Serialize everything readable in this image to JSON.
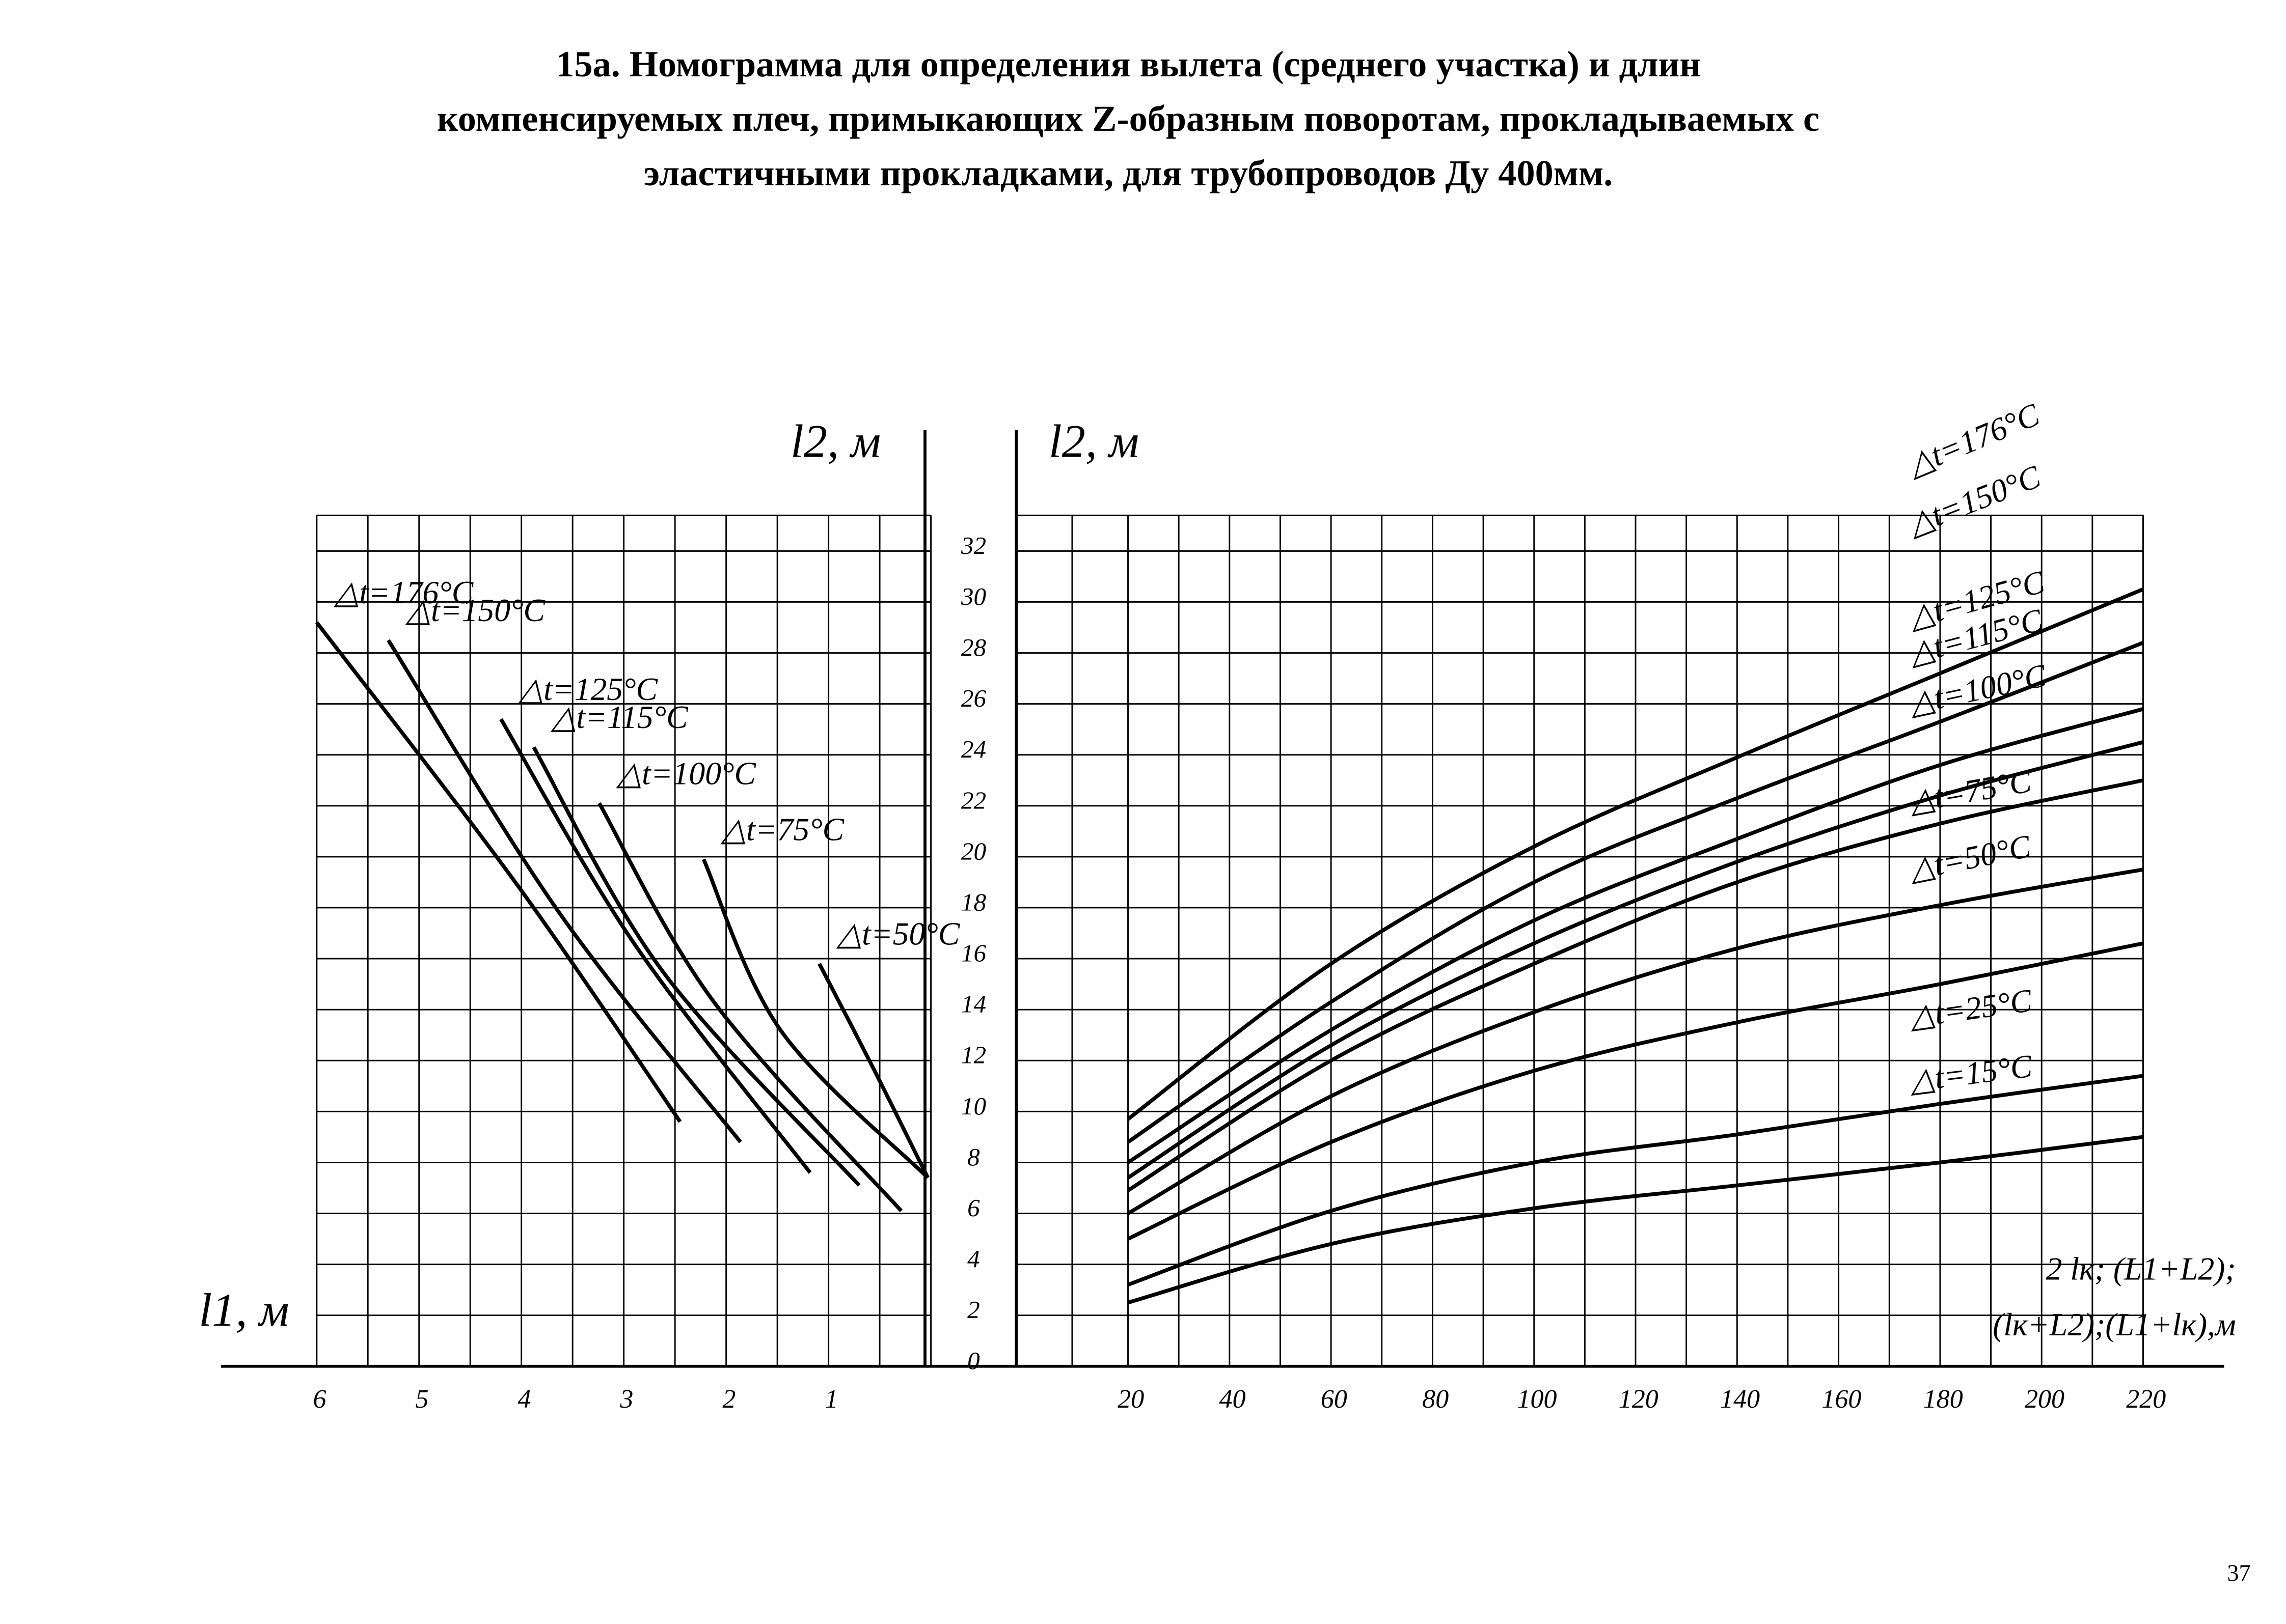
{
  "header": {
    "title": [
      "15а. Номограмма для определения вылета (среднего участка) и длин",
      "компенсируемых плеч, примыкающих Z-образным поворотам, прокладываемых с",
      "эластичными прокладками, для трубопроводов Ду 400мм."
    ],
    "page_number": "37"
  },
  "chart_data": [
    {
      "type": "line",
      "xlabel": "l1, м",
      "ylabel": "l2, м",
      "xlim": [
        6,
        0
      ],
      "xticks": [
        6,
        5,
        4,
        3,
        2,
        1
      ],
      "ylim": [
        0,
        33.4
      ],
      "grid": true,
      "color": "#000000",
      "series": [
        {
          "name": "△t=176°C",
          "x": [
            6.0,
            4.06,
            2.45
          ],
          "values": [
            29.2,
            19.0,
            9.6
          ]
        },
        {
          "name": "△t=150°C",
          "x": [
            5.3,
            3.63,
            1.86
          ],
          "values": [
            28.5,
            17.8,
            8.8
          ]
        },
        {
          "name": "△t=125°C",
          "x": [
            4.2,
            2.9,
            1.18
          ],
          "values": [
            25.4,
            16.6,
            7.6
          ]
        },
        {
          "name": "△t=115°C",
          "x": [
            3.88,
            2.62,
            0.7
          ],
          "values": [
            24.3,
            15.5,
            7.1
          ]
        },
        {
          "name": "△t=100°C",
          "x": [
            3.24,
            2.12,
            0.29
          ],
          "values": [
            22.1,
            14.3,
            6.1
          ]
        },
        {
          "name": "△t=75°C",
          "x": [
            2.22,
            1.47,
            0.03
          ],
          "values": [
            19.9,
            13.2,
            7.4
          ]
        },
        {
          "name": "△t=50°C",
          "x": [
            1.09,
            0.55,
            0.03
          ],
          "values": [
            15.8,
            11.6,
            7.4
          ]
        }
      ]
    },
    {
      "type": "line",
      "xlabel": [
        "2 lк; (L1+L2);",
        "(lк+L2);(L1+lк),м"
      ],
      "ylabel": "l2, м",
      "xlim": [
        -2,
        220
      ],
      "xticks": [
        20,
        40,
        60,
        80,
        100,
        120,
        140,
        160,
        180,
        200,
        220
      ],
      "ylim": [
        0,
        33.4
      ],
      "yticks": [
        0,
        2,
        4,
        6,
        8,
        10,
        12,
        14,
        16,
        18,
        20,
        22,
        24,
        26,
        28,
        30,
        32
      ],
      "grid": true,
      "color": "#000000",
      "x": [
        20,
        60,
        100,
        140,
        180,
        220
      ],
      "series": [
        {
          "name": "△t=176°C",
          "values": [
            9.7,
            15.8,
            20.4,
            23.9,
            27.2,
            30.5
          ]
        },
        {
          "name": "△t=150°C",
          "values": [
            8.8,
            14.3,
            19.0,
            22.3,
            25.3,
            28.4
          ]
        },
        {
          "name": "△t=125°C",
          "values": [
            8.0,
            13.2,
            17.5,
            20.7,
            23.6,
            25.8
          ]
        },
        {
          "name": "△t=115°C",
          "values": [
            7.4,
            12.6,
            16.6,
            19.8,
            22.4,
            24.5
          ]
        },
        {
          "name": "△t=100°C",
          "values": [
            6.9,
            12.0,
            15.8,
            19.0,
            21.3,
            23.0
          ]
        },
        {
          "name": "△t=75°C",
          "values": [
            6.0,
            10.6,
            13.9,
            16.4,
            18.1,
            19.5
          ]
        },
        {
          "name": "△t=50°C",
          "values": [
            5.0,
            8.8,
            11.6,
            13.5,
            15.0,
            16.6
          ]
        },
        {
          "name": "△t=25°C",
          "values": [
            3.2,
            6.1,
            8.0,
            9.1,
            10.3,
            11.4
          ]
        },
        {
          "name": "△t=15°C",
          "values": [
            2.5,
            4.8,
            6.2,
            7.1,
            8.0,
            9.0
          ]
        }
      ]
    }
  ]
}
